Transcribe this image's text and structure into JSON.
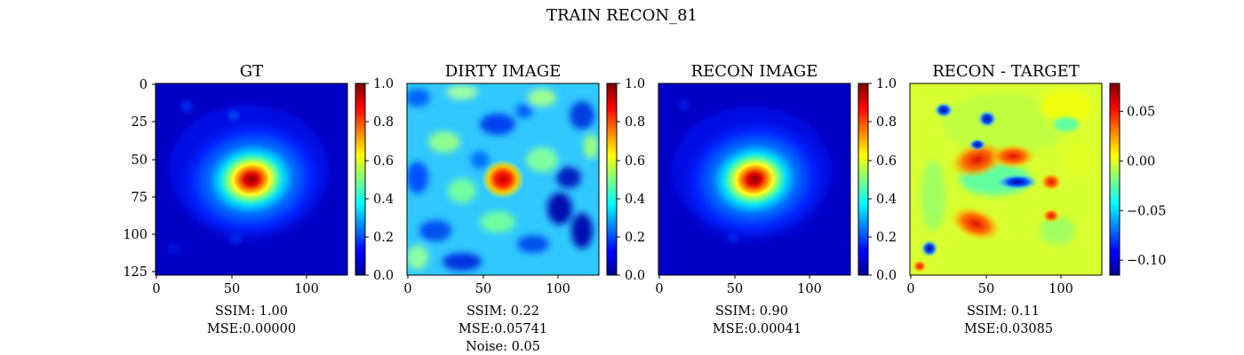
{
  "figure": {
    "suptitle": "TRAIN RECON_81"
  },
  "colormap": "jet",
  "chart_data": [
    {
      "type": "heatmap",
      "id": "gt",
      "title": "GT",
      "image": "smooth elliptical bright source centered near (63,63) on dark background",
      "x_ticks": [
        "0",
        "50",
        "100"
      ],
      "y_ticks": [
        "0",
        "25",
        "50",
        "75",
        "100",
        "125"
      ],
      "xlim": [
        0,
        128
      ],
      "ylim": [
        128,
        0
      ],
      "colorbar": {
        "range": [
          0.0,
          1.0
        ],
        "ticks": [
          "0.0",
          "0.2",
          "0.4",
          "0.6",
          "0.8",
          "1.0"
        ]
      },
      "stats": [
        "SSIM: 1.00",
        "MSE:0.00000"
      ]
    },
    {
      "type": "heatmap",
      "id": "dirty",
      "title": "DIRTY IMAGE",
      "image": "noisy blotchy background with bright compact source near (63,63)",
      "x_ticks": [
        "0",
        "50",
        "100"
      ],
      "xlim": [
        0,
        128
      ],
      "ylim": [
        128,
        0
      ],
      "colorbar": {
        "range": [
          0.0,
          1.0
        ],
        "ticks": [
          "0.0",
          "0.2",
          "0.4",
          "0.6",
          "0.8",
          "1.0"
        ]
      },
      "stats": [
        "SSIM: 0.22",
        "MSE:0.05741",
        "Noise: 0.05"
      ]
    },
    {
      "type": "heatmap",
      "id": "recon",
      "title": "RECON IMAGE",
      "image": "smooth elliptical bright source centered near (63,63) on dark background",
      "x_ticks": [
        "0",
        "50",
        "100"
      ],
      "xlim": [
        0,
        128
      ],
      "ylim": [
        128,
        0
      ],
      "colorbar": {
        "range": [
          0.0,
          1.0
        ],
        "ticks": [
          "0.0",
          "0.2",
          "0.4",
          "0.6",
          "0.8",
          "1.0"
        ]
      },
      "stats": [
        "SSIM: 0.90",
        "MSE:0.00041"
      ]
    },
    {
      "type": "heatmap",
      "id": "diff",
      "title": "RECON - TARGET",
      "image": "residual map: near zero with positive arc around source and negative blobs",
      "x_ticks": [
        "0",
        "50",
        "100"
      ],
      "xlim": [
        0,
        128
      ],
      "ylim": [
        128,
        0
      ],
      "colorbar": {
        "range": [
          -0.115,
          0.078
        ],
        "ticks": [
          "0.05",
          "0.00",
          "−0.05",
          "−0.10"
        ],
        "tick_values": [
          0.05,
          0.0,
          -0.05,
          -0.1
        ]
      },
      "stats": [
        "SSIM: 0.11",
        "MSE:0.03085"
      ]
    }
  ]
}
